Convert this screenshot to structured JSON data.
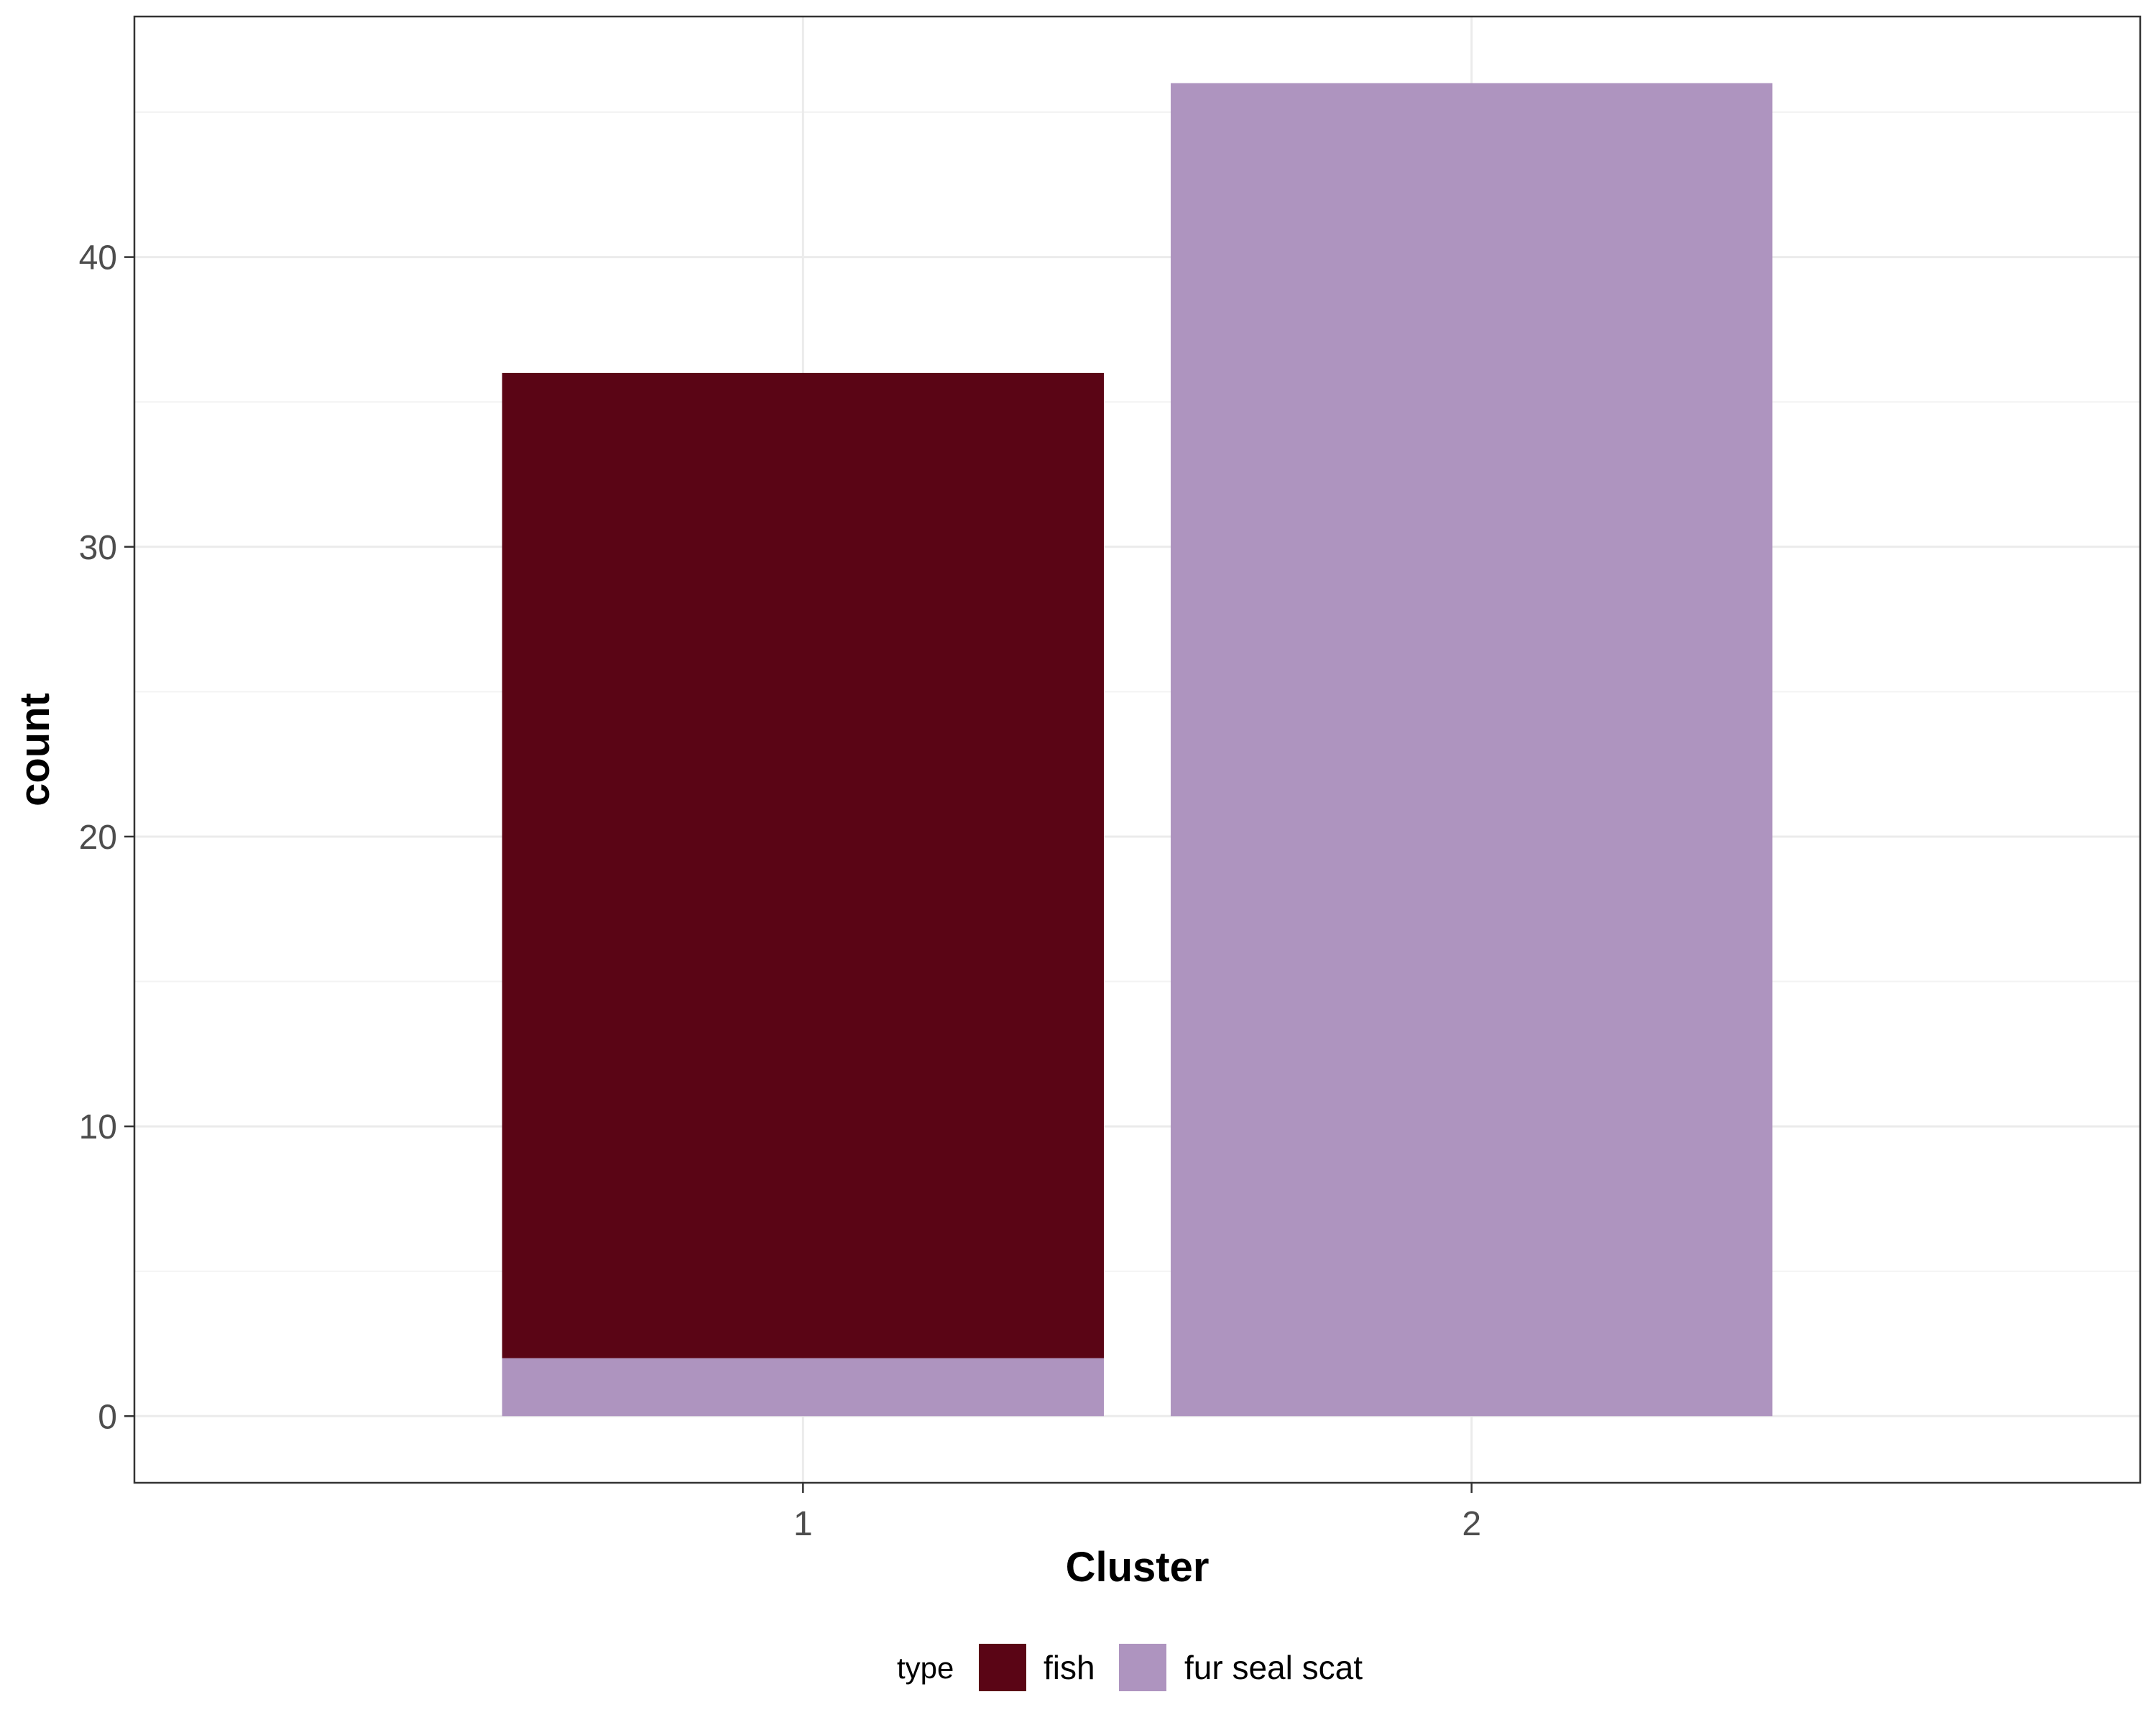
{
  "chart_data": {
    "type": "bar",
    "stacked": true,
    "categories": [
      "1",
      "2"
    ],
    "series": [
      {
        "name": "fish",
        "color": "#5a0515",
        "values": [
          34,
          0
        ]
      },
      {
        "name": "fur seal scat",
        "color": "#ae94bf",
        "values": [
          2,
          46
        ]
      }
    ],
    "xlabel": "Cluster",
    "ylabel": "count",
    "ylim": [
      -2.3,
      48.3
    ],
    "yticks": [
      0,
      10,
      20,
      30,
      40
    ],
    "ytick_labels": [
      "0",
      "10",
      "20",
      "30",
      "40"
    ],
    "grid": true,
    "legend": {
      "title": "type",
      "position": "bottom",
      "entries": [
        "fish",
        "fur seal scat"
      ]
    },
    "colors": {
      "panel_border": "#333333",
      "grid_major": "#ebebeb",
      "grid_minor": "#f3f3f3",
      "tick_text": "#4d4d4d"
    }
  }
}
